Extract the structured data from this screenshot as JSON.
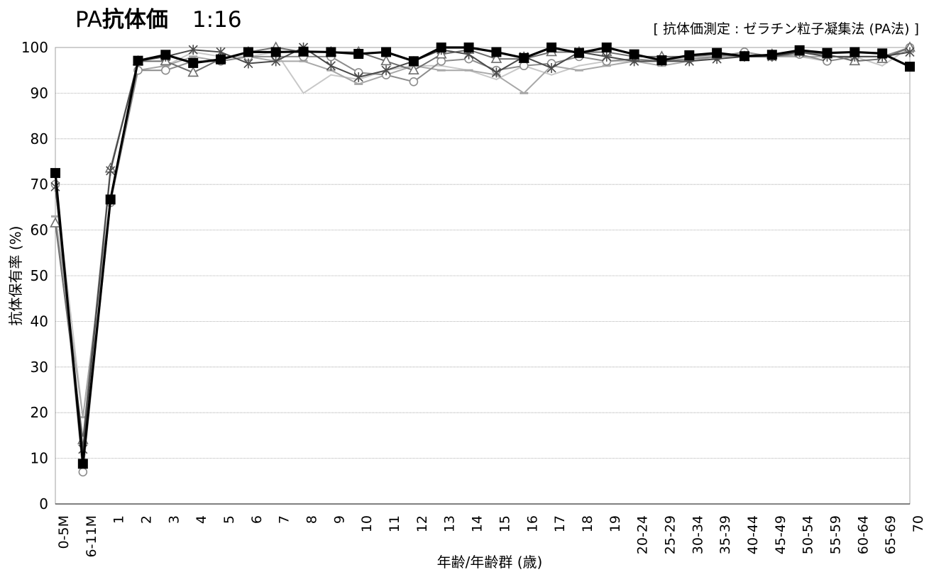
{
  "title": {
    "prefix": "PA",
    "bold": "抗体価",
    "threshold": "1:16"
  },
  "method_note": "[ 抗体価測定 : ゼラチン粒子凝集法 (PA法) ]",
  "colors": {
    "series": [
      "#c8c8c8",
      "#a8a8a8",
      "#8c8c8c",
      "#6e6e6e",
      "#4a4a4a",
      "#000000"
    ]
  },
  "chart_data": {
    "type": "line",
    "xlabel": "年齢/年齢群 (歳)",
    "ylabel": "抗体保有率 (%)",
    "ylim": [
      0,
      100
    ],
    "yticks": [
      0,
      10,
      20,
      30,
      40,
      50,
      60,
      70,
      80,
      90,
      100
    ],
    "grid": "horizontal",
    "legend": "none",
    "categories": [
      "0-5M",
      "6-11M",
      "1",
      "2",
      "3",
      "4",
      "5",
      "6",
      "7",
      "8",
      "9",
      "10",
      "11",
      "12",
      "13",
      "14",
      "15",
      "16",
      "17",
      "18",
      "19",
      "20-24",
      "25-29",
      "30-34",
      "35-39",
      "40-44",
      "45-49",
      "50-54",
      "55-59",
      "60-64",
      "65-69",
      "70"
    ],
    "series": [
      {
        "marker": "none",
        "values": [
          70,
          19,
          66,
          95,
          96,
          99,
          98,
          98,
          99,
          90,
          94,
          93,
          95,
          96,
          96,
          95,
          93,
          96,
          94,
          96,
          97,
          97,
          97,
          98,
          98,
          98,
          98,
          98,
          97,
          98,
          96,
          100
        ]
      },
      {
        "marker": "dash",
        "values": [
          63,
          19,
          67,
          95,
          96,
          98,
          97,
          98,
          97,
          97,
          95,
          92,
          94,
          96,
          95,
          95,
          94,
          90,
          96,
          95,
          96,
          97,
          96,
          97,
          98,
          98,
          98,
          98,
          98,
          98,
          98,
          99
        ]
      },
      {
        "marker": "circle",
        "values": [
          70,
          7,
          66,
          95,
          95,
          97,
          97,
          98,
          98,
          98,
          98,
          94.5,
          94,
          92.5,
          97,
          97.5,
          95,
          96,
          96.5,
          98,
          97,
          97.5,
          97,
          97.5,
          98,
          99,
          98,
          98.5,
          97,
          98,
          98,
          100
        ]
      },
      {
        "marker": "triangle",
        "values": [
          61.5,
          14,
          73.5,
          97,
          97,
          94.5,
          97.5,
          99,
          100,
          99,
          99,
          99,
          97,
          95,
          98.5,
          99.5,
          97.5,
          97.5,
          99,
          99,
          99,
          98,
          98,
          98,
          98.5,
          98,
          98.5,
          99,
          98.5,
          97,
          97.5,
          100
        ]
      },
      {
        "marker": "cross",
        "values": [
          69.5,
          12,
          73,
          97,
          98,
          99.5,
          99,
          96.5,
          97,
          100,
          96,
          93.5,
          95,
          97,
          99.5,
          98.5,
          94.5,
          98,
          95.5,
          99,
          98,
          97,
          97,
          97,
          97.5,
          98,
          98,
          99,
          98,
          98,
          98,
          99
        ]
      },
      {
        "marker": "square",
        "values": [
          72.5,
          8.8,
          66.7,
          97.1,
          98.4,
          96.6,
          97.4,
          99.0,
          99.0,
          99.1,
          99.0,
          98.6,
          99.0,
          97.0,
          100,
          100,
          99.0,
          97.7,
          100,
          98.8,
          100,
          98.5,
          97.2,
          98.3,
          98.8,
          98.1,
          98.4,
          99.4,
          98.8,
          99.0,
          98.7,
          95.8
        ]
      }
    ]
  }
}
